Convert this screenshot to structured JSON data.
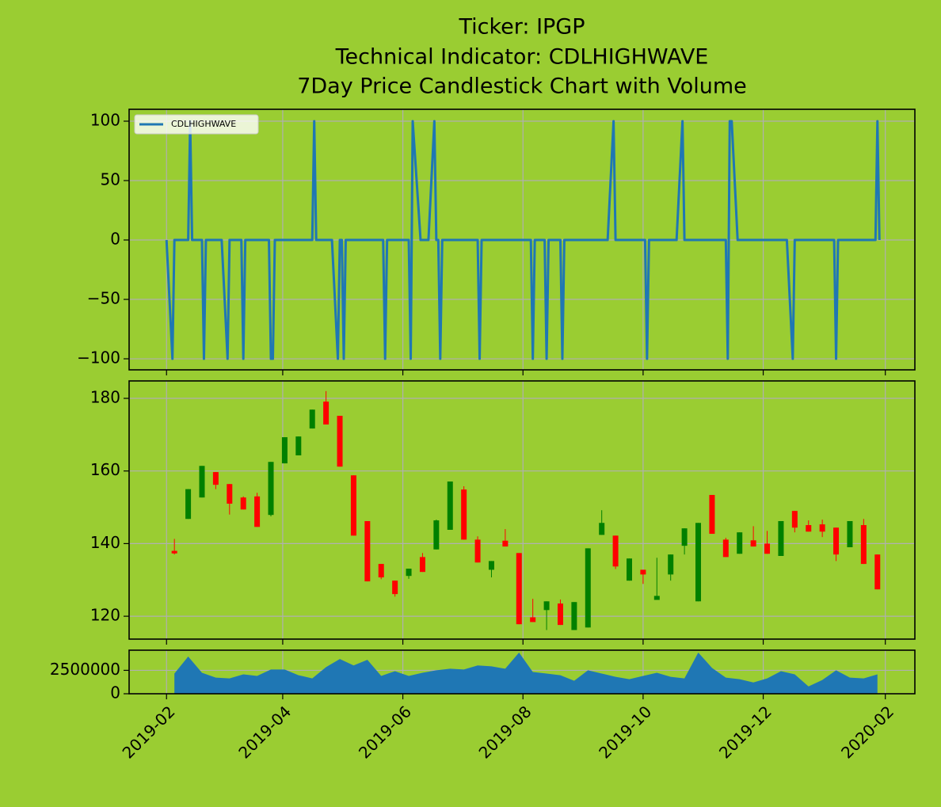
{
  "chart_data": [
    {
      "type": "line",
      "title": [
        "Ticker: IPGP",
        "Technical Indicator: CDLHIGHWAVE",
        "7Day Price Candlestick Chart with Volume"
      ],
      "x": [
        "2019-02-01",
        "2019-02-04",
        "2019-02-05",
        "2019-02-12",
        "2019-02-13",
        "2019-02-14",
        "2019-02-19",
        "2019-02-20",
        "2019-02-21",
        "2019-03-01",
        "2019-03-04",
        "2019-03-05",
        "2019-03-11",
        "2019-03-12",
        "2019-03-13",
        "2019-03-25",
        "2019-03-26",
        "2019-03-27",
        "2019-03-28",
        "2019-04-16",
        "2019-04-17",
        "2019-04-18",
        "2019-04-26",
        "2019-04-29",
        "2019-04-30",
        "2019-05-01",
        "2019-05-02",
        "2019-05-03",
        "2019-05-22",
        "2019-05-23",
        "2019-05-24",
        "2019-06-04",
        "2019-06-05",
        "2019-06-06",
        "2019-06-10",
        "2019-06-14",
        "2019-06-17",
        "2019-06-18",
        "2019-06-19",
        "2019-06-20",
        "2019-06-21",
        "2019-07-09",
        "2019-07-10",
        "2019-07-11",
        "2019-08-05",
        "2019-08-06",
        "2019-08-07",
        "2019-08-12",
        "2019-08-13",
        "2019-08-14",
        "2019-08-20",
        "2019-08-21",
        "2019-08-22",
        "2019-09-13",
        "2019-09-16",
        "2019-09-17",
        "2019-10-02",
        "2019-10-03",
        "2019-10-04",
        "2019-10-18",
        "2019-10-21",
        "2019-10-22",
        "2019-11-12",
        "2019-11-13",
        "2019-11-14",
        "2019-11-15",
        "2019-11-18",
        "2019-12-13",
        "2019-12-16",
        "2019-12-17",
        "2020-01-06",
        "2020-01-07",
        "2020-01-08",
        "2020-01-27",
        "2020-01-28",
        "2020-01-29"
      ],
      "series": [
        {
          "name": "CDLHIGHWAVE",
          "color": "#1f77b4",
          "values": [
            0,
            -100,
            0,
            0,
            100,
            0,
            0,
            -100,
            0,
            0,
            -100,
            0,
            0,
            -100,
            0,
            0,
            -100,
            -100,
            0,
            0,
            100,
            0,
            0,
            -100,
            0,
            0,
            -100,
            0,
            0,
            -100,
            0,
            0,
            -100,
            100,
            0,
            0,
            100,
            0,
            0,
            -100,
            0,
            0,
            -100,
            0,
            0,
            -100,
            0,
            0,
            -100,
            0,
            0,
            -100,
            0,
            0,
            100,
            0,
            0,
            -100,
            0,
            0,
            100,
            0,
            0,
            -100,
            100,
            100,
            0,
            0,
            -100,
            0,
            0,
            -100,
            0,
            0,
            100,
            0
          ]
        }
      ],
      "xlim": [
        "2019-01-13",
        "2020-02-16"
      ],
      "ylim": [
        -109.3,
        110
      ],
      "yticks": [
        {
          "value": -100,
          "label": "−100"
        },
        {
          "value": -50,
          "label": "−50"
        },
        0,
        50,
        100
      ],
      "grid": true,
      "legend": "upper left"
    },
    {
      "type": "candlestick",
      "x": [
        "2019-02-05",
        "2019-02-12",
        "2019-02-19",
        "2019-02-26",
        "2019-03-05",
        "2019-03-12",
        "2019-03-19",
        "2019-03-26",
        "2019-04-02",
        "2019-04-09",
        "2019-04-16",
        "2019-04-23",
        "2019-04-30",
        "2019-05-07",
        "2019-05-14",
        "2019-05-21",
        "2019-05-28",
        "2019-06-04",
        "2019-06-11",
        "2019-06-18",
        "2019-06-25",
        "2019-07-02",
        "2019-07-09",
        "2019-07-16",
        "2019-07-23",
        "2019-07-30",
        "2019-08-06",
        "2019-08-13",
        "2019-08-20",
        "2019-08-27",
        "2019-09-03",
        "2019-09-10",
        "2019-09-17",
        "2019-09-24",
        "2019-10-01",
        "2019-10-08",
        "2019-10-15",
        "2019-10-22",
        "2019-10-29",
        "2019-11-05",
        "2019-11-12",
        "2019-11-19",
        "2019-11-26",
        "2019-12-03",
        "2019-12-10",
        "2019-12-17",
        "2019-12-24",
        "2019-12-31",
        "2020-01-07",
        "2020-01-14",
        "2020-01-21",
        "2020-01-28"
      ],
      "open": [
        138,
        146.8,
        152.7,
        159.7,
        156.4,
        152.7,
        153,
        147.9,
        162.1,
        164.3,
        171.7,
        179.1,
        175.2,
        158.8,
        146.2,
        134.4,
        129.8,
        131.1,
        136.3,
        138.4,
        143.8,
        154.9,
        141.1,
        132.8,
        140.8,
        137.4,
        119.7,
        121.7,
        123.5,
        116.2,
        116.9,
        142.4,
        142.2,
        129.8,
        132.8,
        124.5,
        131.5,
        139.4,
        124.1,
        153.4,
        141.1,
        137.2,
        140.9,
        140,
        136.6,
        149,
        145.1,
        145.3,
        144.4,
        139,
        145.1,
        137
      ],
      "high": [
        141.3,
        155,
        161.4,
        159.7,
        156.4,
        153,
        154,
        162.5,
        169.3,
        169.5,
        176.9,
        182,
        175.2,
        158.8,
        146.2,
        134.4,
        129.8,
        133.1,
        137.4,
        146.6,
        157.1,
        155.8,
        142,
        135.2,
        144,
        137.4,
        124.8,
        124.1,
        124.6,
        123.9,
        138.7,
        149.2,
        142.2,
        135.9,
        132.8,
        136.1,
        137,
        144.2,
        145.7,
        153.4,
        141.6,
        143.1,
        144.8,
        143.5,
        146.2,
        149,
        146.4,
        146.6,
        144.4,
        146.2,
        146.8,
        137
      ],
      "low": [
        137,
        146.8,
        152.7,
        155,
        148,
        149.4,
        144.6,
        147.5,
        162.1,
        164.3,
        171.7,
        172.8,
        161.2,
        142.2,
        129.6,
        130.2,
        125.4,
        130.3,
        132.2,
        138.4,
        143.8,
        141.1,
        134.8,
        130.7,
        139.2,
        117.8,
        118.4,
        116.2,
        117.6,
        116.2,
        116.9,
        142.4,
        133,
        129.8,
        128.9,
        124.5,
        129.8,
        137,
        124.1,
        142.7,
        136.3,
        137.2,
        139.2,
        137.2,
        136.6,
        143.1,
        143.3,
        141.8,
        135.2,
        139,
        134.4,
        127.4
      ],
      "close": [
        137.3,
        155,
        161.4,
        156.2,
        151,
        149.4,
        144.6,
        162.5,
        169.3,
        169.5,
        176.9,
        172.8,
        161.2,
        142.2,
        129.6,
        130.7,
        126.1,
        133.1,
        132.2,
        146.4,
        157.1,
        141.1,
        134.8,
        135.2,
        139.2,
        117.8,
        118.4,
        124.1,
        117.6,
        123.9,
        138.7,
        145.7,
        133.7,
        135.9,
        131.5,
        125.6,
        137,
        144.2,
        145.7,
        142.7,
        136.3,
        143.1,
        139.2,
        137.2,
        146.2,
        144.4,
        143.3,
        143.3,
        137,
        146.2,
        134.4,
        127.4
      ],
      "up_color": "green",
      "down_color": "red",
      "xlim": [
        "2019-01-13",
        "2020-02-16"
      ],
      "ylim": [
        113.7,
        184.8
      ],
      "yticks": [
        120,
        140,
        160,
        180
      ],
      "grid": true
    },
    {
      "type": "area",
      "x": [
        "2019-02-05",
        "2019-02-12",
        "2019-02-19",
        "2019-02-26",
        "2019-03-05",
        "2019-03-12",
        "2019-03-19",
        "2019-03-26",
        "2019-04-02",
        "2019-04-09",
        "2019-04-16",
        "2019-04-23",
        "2019-04-30",
        "2019-05-07",
        "2019-05-14",
        "2019-05-21",
        "2019-05-28",
        "2019-06-04",
        "2019-06-11",
        "2019-06-18",
        "2019-06-25",
        "2019-07-02",
        "2019-07-09",
        "2019-07-16",
        "2019-07-23",
        "2019-07-30",
        "2019-08-06",
        "2019-08-13",
        "2019-08-20",
        "2019-08-27",
        "2019-09-03",
        "2019-09-10",
        "2019-09-17",
        "2019-09-24",
        "2019-10-01",
        "2019-10-08",
        "2019-10-15",
        "2019-10-22",
        "2019-10-29",
        "2019-11-05",
        "2019-11-12",
        "2019-11-19",
        "2019-11-26",
        "2019-12-03",
        "2019-12-10",
        "2019-12-17",
        "2019-12-24",
        "2019-12-31",
        "2020-01-07",
        "2020-01-14",
        "2020-01-21",
        "2020-01-28"
      ],
      "values": [
        2160000,
        3970000,
        2240000,
        1720000,
        1640000,
        2070000,
        1900000,
        2590000,
        2590000,
        1980000,
        1640000,
        2840000,
        3710000,
        3020000,
        3620000,
        1900000,
        2410000,
        1900000,
        2240000,
        2500000,
        2670000,
        2590000,
        3020000,
        2930000,
        2670000,
        4400000,
        2330000,
        2160000,
        1980000,
        1380000,
        2500000,
        2160000,
        1810000,
        1550000,
        1900000,
        2240000,
        1810000,
        1640000,
        4400000,
        2760000,
        1720000,
        1550000,
        1210000,
        1640000,
        2410000,
        2070000,
        780000,
        1470000,
        2500000,
        1720000,
        1640000,
        2070000
      ],
      "color": "#1f77b4",
      "xlim": [
        "2019-01-13",
        "2020-02-16"
      ],
      "ylim": [
        0,
        4650000
      ],
      "yticks": [
        0,
        2500000
      ],
      "xticks": [
        "2019-02",
        "2019-04",
        "2019-06",
        "2019-08",
        "2019-10",
        "2019-12",
        "2020-02"
      ],
      "grid": true
    }
  ]
}
